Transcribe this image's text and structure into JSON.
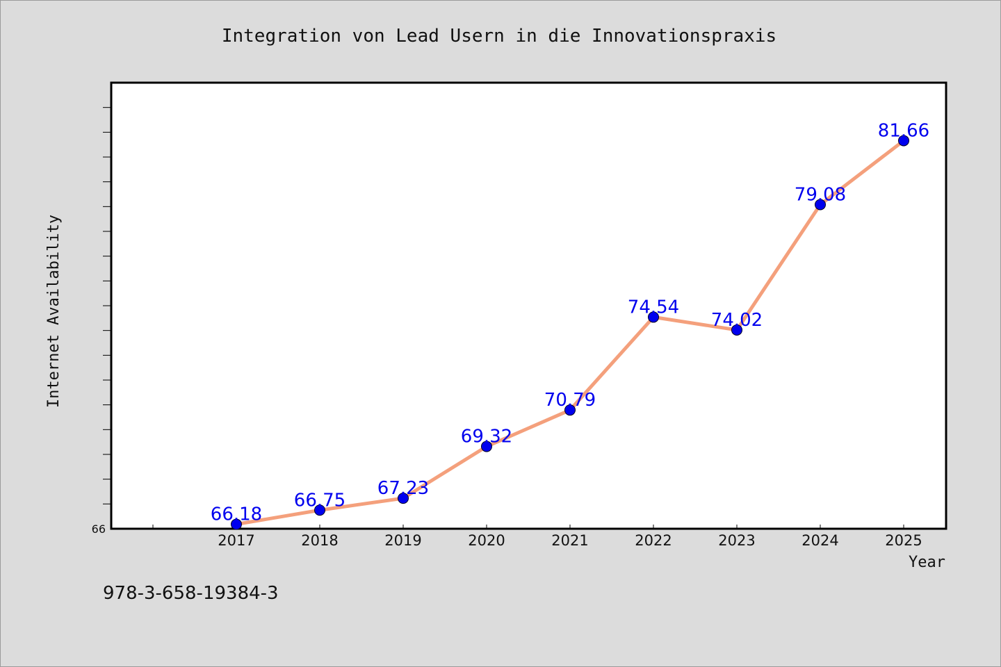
{
  "colors": {
    "background": "#dcdcdc",
    "plot_background": "#ffffff",
    "line": "#f4a07c",
    "marker": "#0000ee",
    "data_label": "#0000ee"
  },
  "footer_text": "978-3-658-19384-3",
  "chart_data": {
    "type": "line",
    "title": "Integration von Lead Usern in die Innovationspraxis",
    "xlabel": "Year",
    "ylabel": "Internet Availability",
    "categories": [
      "2017",
      "2018",
      "2019",
      "2020",
      "2021",
      "2022",
      "2023",
      "2024",
      "2025"
    ],
    "series": [
      {
        "values": [
          66.18,
          66.75,
          67.23,
          69.32,
          70.79,
          74.54,
          74.02,
          79.08,
          81.66
        ],
        "labels": [
          "66.18",
          "66.75",
          "67.23",
          "69.32",
          "70.79",
          "74.54",
          "74.02",
          "79.08",
          "81.66"
        ]
      }
    ],
    "ylim": [
      66,
      84
    ],
    "y_tick_labels": [
      "66"
    ],
    "grid": false,
    "legend": "none"
  }
}
